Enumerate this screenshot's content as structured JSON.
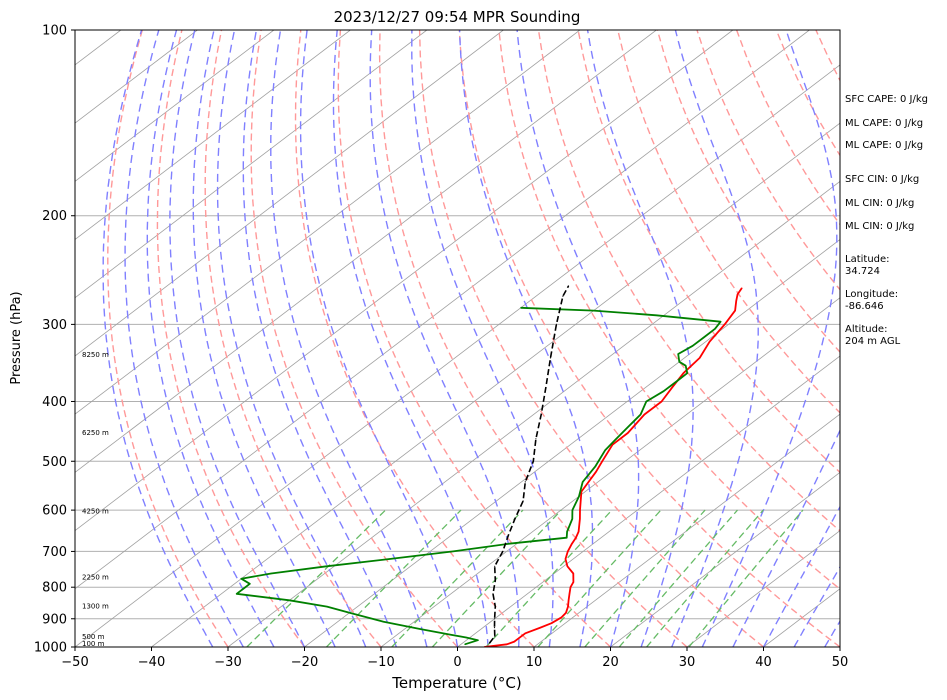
{
  "chart_data": {
    "type": "skew-t",
    "title": "2023/12/27 09:54 MPR Sounding",
    "xlabel": "Temperature (°C)",
    "ylabel": "Pressure (hPa)",
    "xlim": [
      -50,
      50
    ],
    "ylim": [
      1000,
      100
    ],
    "yscale": "log",
    "x_ticks": [
      "−50",
      "−40",
      "−30",
      "−20",
      "−10",
      "0",
      "10",
      "20",
      "30",
      "40",
      "50"
    ],
    "y_ticks": [
      {
        "p": 100,
        "label": "100"
      },
      {
        "p": 200,
        "label": "200"
      },
      {
        "p": 300,
        "label": "300"
      },
      {
        "p": 400,
        "label": "400"
      },
      {
        "p": 500,
        "label": "500"
      },
      {
        "p": 600,
        "label": "600"
      },
      {
        "p": 700,
        "label": "700"
      },
      {
        "p": 800,
        "label": "800"
      },
      {
        "p": 900,
        "label": "900"
      },
      {
        "p": 1000,
        "label": "1000"
      }
    ],
    "skew_deg_per_decade": 106,
    "grid": true,
    "colors": {
      "temperature": "#ff0000",
      "dewpoint": "#008000",
      "parcel": "#000000",
      "dry_adiabat": "#ff9999",
      "moist_adiabat": "#8080ff",
      "mixing_ratio": "#66bb66",
      "isotherm": "#a0a0a0"
    },
    "height_labels": [
      {
        "p": 1000,
        "label": "100 m"
      },
      {
        "p": 975,
        "label": "500 m"
      },
      {
        "p": 870,
        "label": "1300 m"
      },
      {
        "p": 780,
        "label": "2250 m"
      },
      {
        "p": 610,
        "label": "4250 m"
      },
      {
        "p": 455,
        "label": "6250 m"
      },
      {
        "p": 340,
        "label": "8250 m"
      }
    ],
    "series": [
      {
        "role": "temperature",
        "points": [
          [
            1000,
            3.5
          ],
          [
            990,
            6
          ],
          [
            980,
            6.5
          ],
          [
            970,
            6.5
          ],
          [
            950,
            6.5
          ],
          [
            930,
            7.5
          ],
          [
            915,
            8.2
          ],
          [
            895,
            8.5
          ],
          [
            880,
            8.3
          ],
          [
            860,
            7.5
          ],
          [
            840,
            6.5
          ],
          [
            820,
            5.5
          ],
          [
            800,
            4.5
          ],
          [
            785,
            4
          ],
          [
            760,
            2.5
          ],
          [
            740,
            0.5
          ],
          [
            720,
            -1
          ],
          [
            700,
            -2
          ],
          [
            680,
            -2.8
          ],
          [
            665,
            -3.3
          ],
          [
            650,
            -4
          ],
          [
            620,
            -6
          ],
          [
            600,
            -7.5
          ],
          [
            560,
            -10.5
          ],
          [
            520,
            -12
          ],
          [
            500,
            -13
          ],
          [
            470,
            -14.5
          ],
          [
            450,
            -14.5
          ],
          [
            420,
            -15.5
          ],
          [
            400,
            -15.5
          ],
          [
            380,
            -16.5
          ],
          [
            360,
            -17.5
          ],
          [
            340,
            -18
          ],
          [
            320,
            -19.5
          ],
          [
            300,
            -20.5
          ],
          [
            285,
            -21.5
          ],
          [
            275,
            -23
          ],
          [
            268,
            -24
          ],
          [
            262,
            -24.5
          ]
        ]
      },
      {
        "role": "dewpoint",
        "points": [
          [
            990,
            0.5
          ],
          [
            975,
            1.5
          ],
          [
            965,
            -0.5
          ],
          [
            955,
            -3
          ],
          [
            935,
            -8
          ],
          [
            910,
            -14
          ],
          [
            880,
            -20
          ],
          [
            860,
            -24
          ],
          [
            840,
            -30
          ],
          [
            820,
            -38
          ],
          [
            815,
            -38
          ],
          [
            805,
            -38
          ],
          [
            790,
            -38
          ],
          [
            775,
            -40
          ],
          [
            760,
            -37
          ],
          [
            740,
            -31
          ],
          [
            720,
            -24
          ],
          [
            700,
            -17
          ],
          [
            680,
            -11
          ],
          [
            665,
            -4.5
          ],
          [
            650,
            -5.5
          ],
          [
            620,
            -7
          ],
          [
            600,
            -8.5
          ],
          [
            570,
            -10
          ],
          [
            540,
            -12
          ],
          [
            510,
            -13
          ],
          [
            480,
            -14.5
          ],
          [
            460,
            -15
          ],
          [
            440,
            -15.5
          ],
          [
            420,
            -16
          ],
          [
            400,
            -17.5
          ],
          [
            385,
            -17
          ],
          [
            370,
            -17
          ],
          [
            360,
            -17
          ],
          [
            350,
            -18.5
          ],
          [
            345,
            -20
          ],
          [
            335,
            -21.5
          ],
          [
            325,
            -21
          ],
          [
            315,
            -21
          ],
          [
            305,
            -21
          ],
          [
            297,
            -21.5
          ],
          [
            290,
            -31
          ],
          [
            285,
            -40
          ],
          [
            282,
            -50
          ]
        ]
      },
      {
        "role": "parcel",
        "points": [
          [
            985,
            3.5
          ],
          [
            960,
            3
          ],
          [
            930,
            1.5
          ],
          [
            900,
            0
          ],
          [
            860,
            -2
          ],
          [
            820,
            -4.5
          ],
          [
            780,
            -6.5
          ],
          [
            740,
            -9
          ],
          [
            700,
            -10.5
          ],
          [
            660,
            -12.5
          ],
          [
            620,
            -14.5
          ],
          [
            580,
            -16.5
          ],
          [
            540,
            -19.5
          ],
          [
            500,
            -22
          ],
          [
            460,
            -25.5
          ],
          [
            420,
            -29
          ],
          [
            380,
            -33
          ],
          [
            340,
            -37.5
          ],
          [
            300,
            -42.5
          ],
          [
            270,
            -46.5
          ],
          [
            260,
            -47.5
          ]
        ]
      }
    ]
  },
  "side_panel": {
    "sfc_cape": "SFC CAPE: 0 J/kg",
    "ml_cape_1": "ML CAPE: 0 J/kg",
    "ml_cape_2": "ML CAPE: 0 J/kg",
    "sfc_cin": "SFC CIN: 0 J/kg",
    "ml_cin_1": "ML CIN: 0 J/kg",
    "ml_cin_2": "ML CIN: 0 J/kg",
    "latitude_label": "Latitude:",
    "latitude_value": "34.724",
    "longitude_label": "Longitude:",
    "longitude_value": "-86.646",
    "altitude_label": "Altitude:",
    "altitude_value": "204 m AGL"
  }
}
